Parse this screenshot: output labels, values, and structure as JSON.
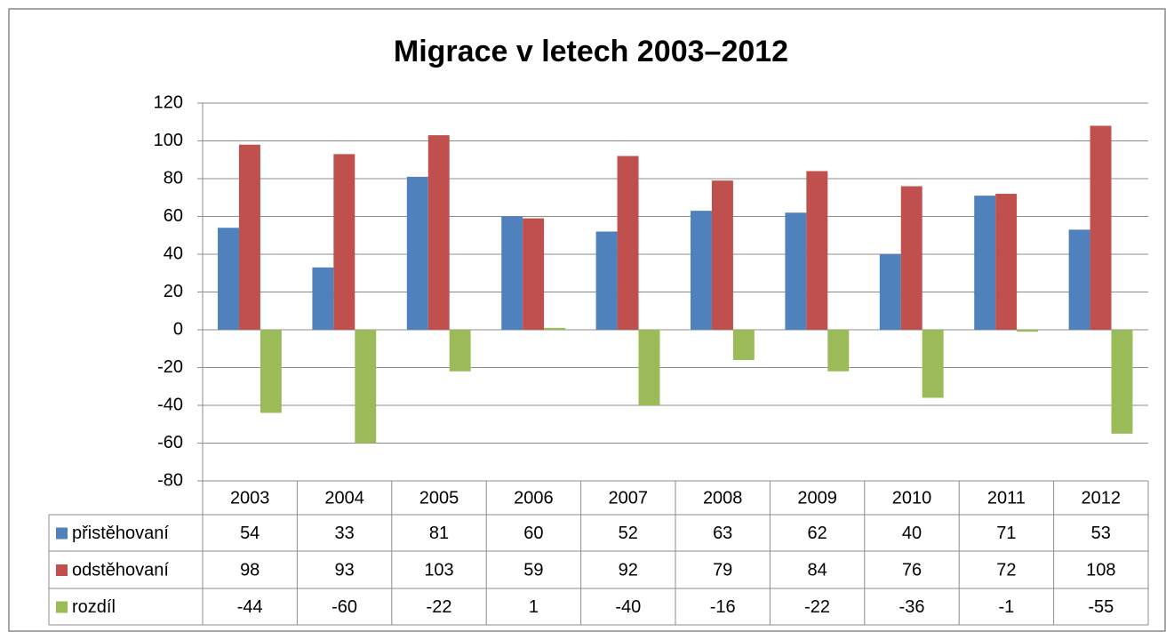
{
  "chart_data": {
    "type": "bar",
    "title": "Migrace v letech 2003–2012",
    "categories": [
      "2003",
      "2004",
      "2005",
      "2006",
      "2007",
      "2008",
      "2009",
      "2010",
      "2011",
      "2012"
    ],
    "series": [
      {
        "name": "přistěhovaní",
        "color": "#4f81bd",
        "values": [
          54,
          33,
          81,
          60,
          52,
          63,
          62,
          40,
          71,
          53
        ]
      },
      {
        "name": "odstěhovaní",
        "color": "#c0504d",
        "values": [
          98,
          93,
          103,
          59,
          92,
          79,
          84,
          76,
          72,
          108
        ]
      },
      {
        "name": "rozdíl",
        "color": "#9bbb59",
        "values": [
          -44,
          -60,
          -22,
          1,
          -40,
          -16,
          -22,
          -36,
          -1,
          -55
        ]
      }
    ],
    "ylim": [
      -80,
      120
    ],
    "yticks": [
      -80,
      -60,
      -40,
      -20,
      0,
      20,
      40,
      60,
      80,
      100,
      120
    ],
    "grid": true
  }
}
